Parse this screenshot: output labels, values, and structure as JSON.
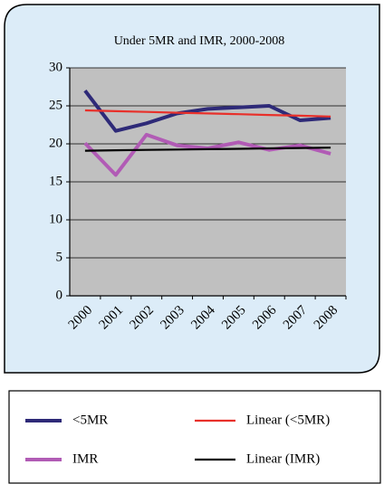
{
  "chart_data": {
    "type": "line",
    "title": "Under 5MR and IMR, 2000-2008",
    "categories": [
      "2000",
      "2001",
      "2002",
      "2003",
      "2004",
      "2005",
      "2006",
      "2007",
      "2008"
    ],
    "series": [
      {
        "name": "<5MR",
        "color": "#2e2a78",
        "values": [
          27,
          21.7,
          22.7,
          24,
          24.6,
          24.8,
          25,
          23.1,
          23.4
        ]
      },
      {
        "name": "IMR",
        "color": "#b15bb5",
        "values": [
          20.1,
          15.9,
          21.2,
          19.8,
          19.4,
          20.2,
          19.2,
          19.8,
          18.7
        ]
      },
      {
        "name": "Linear (<5MR)",
        "color": "#e8302a",
        "values": [
          24.4,
          24.3,
          24.2,
          24.1,
          24,
          23.9,
          23.8,
          23.7,
          23.6
        ]
      },
      {
        "name": "Linear (IMR)",
        "color": "#000000",
        "values": [
          19.1,
          19.15,
          19.2,
          19.25,
          19.3,
          19.35,
          19.4,
          19.45,
          19.5
        ]
      }
    ],
    "ylim": [
      0,
      30
    ],
    "yticks": [
      0,
      5,
      10,
      15,
      20,
      25,
      30
    ],
    "grid": true
  }
}
